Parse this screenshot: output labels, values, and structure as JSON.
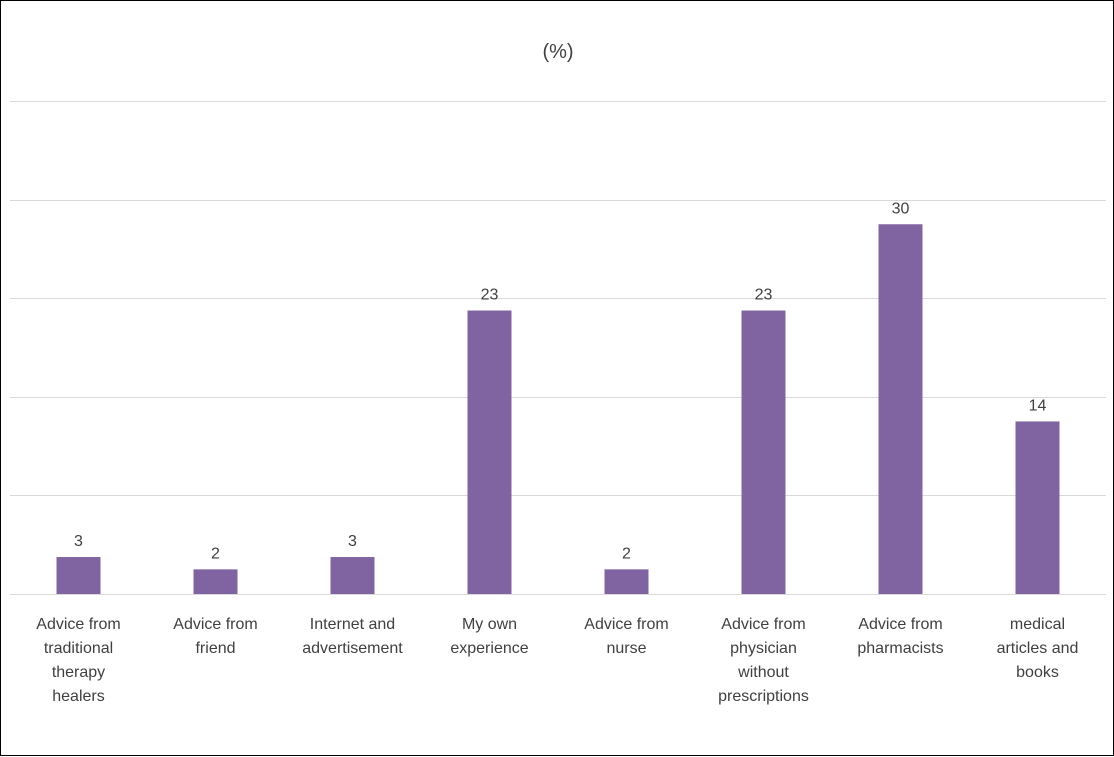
{
  "chart_data": {
    "type": "bar",
    "title": "(%)",
    "xlabel": "",
    "ylabel": "",
    "categories": [
      [
        "Advice from",
        "traditional",
        "therapy",
        "healers"
      ],
      [
        "Advice from",
        "friend"
      ],
      [
        "Internet and",
        "advertisement"
      ],
      [
        "My own",
        "experience"
      ],
      [
        "Advice from",
        "nurse"
      ],
      [
        "Advice from",
        "physician",
        "without",
        "prescriptions"
      ],
      [
        "Advice from",
        "pharmacists"
      ],
      [
        "medical",
        "articles and",
        "books"
      ]
    ],
    "values": [
      3,
      2,
      3,
      23,
      2,
      23,
      30,
      14
    ],
    "ylim": [
      0,
      40
    ],
    "grid": true,
    "legend": "none",
    "bar_color": "#8064A2",
    "grid_color": "#D9D9D9",
    "text_color": "#404040"
  }
}
